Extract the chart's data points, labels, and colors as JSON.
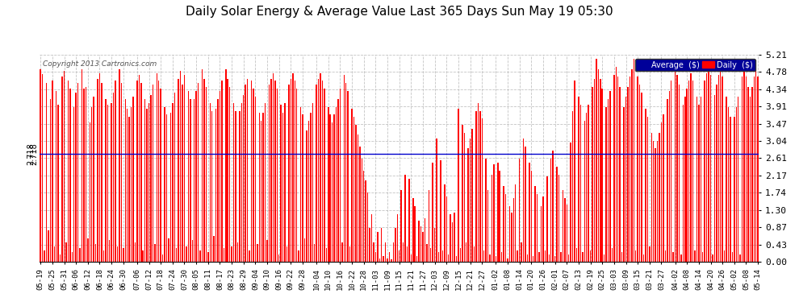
{
  "title": "Daily Solar Energy & Average Value Last 365 Days Sun May 19 05:30",
  "copyright": "Copyright 2013 Cartronics.com",
  "average_value": 2.718,
  "average_label": "2.718",
  "bar_color": "#ff0000",
  "average_line_color": "#0000cc",
  "background_color": "#ffffff",
  "grid_color": "#aaaaaa",
  "ylim": [
    0.0,
    5.21
  ],
  "yticks": [
    0.0,
    0.43,
    0.87,
    1.3,
    1.74,
    2.17,
    2.61,
    3.04,
    3.47,
    3.91,
    4.34,
    4.78,
    5.21
  ],
  "legend_avg_color": "#000099",
  "legend_daily_color": "#ff0000",
  "x_tick_labels": [
    "05-19",
    "05-25",
    "05-31",
    "06-06",
    "06-12",
    "06-18",
    "06-24",
    "06-30",
    "07-06",
    "07-12",
    "07-18",
    "07-24",
    "07-30",
    "08-05",
    "08-11",
    "08-17",
    "08-23",
    "08-29",
    "09-04",
    "09-10",
    "09-16",
    "09-22",
    "09-28",
    "10-04",
    "10-10",
    "10-16",
    "10-22",
    "10-28",
    "11-03",
    "11-09",
    "11-15",
    "11-21",
    "11-27",
    "12-03",
    "12-09",
    "12-15",
    "12-21",
    "12-27",
    "01-02",
    "01-08",
    "01-14",
    "01-20",
    "01-26",
    "02-01",
    "02-07",
    "02-13",
    "02-19",
    "02-25",
    "03-03",
    "03-09",
    "03-15",
    "03-21",
    "03-27",
    "04-02",
    "04-08",
    "04-14",
    "04-20",
    "04-26",
    "05-02",
    "05-08",
    "05-14"
  ],
  "bar_values": [
    4.85,
    4.72,
    0.3,
    4.5,
    0.8,
    4.1,
    4.55,
    0.4,
    4.3,
    3.95,
    0.2,
    4.65,
    4.8,
    0.5,
    4.55,
    4.35,
    0.25,
    3.9,
    4.25,
    4.5,
    0.35,
    4.85,
    4.35,
    4.4,
    0.6,
    3.5,
    3.9,
    4.15,
    0.45,
    4.6,
    4.75,
    4.5,
    0.3,
    4.1,
    3.95,
    0.55,
    4.0,
    4.25,
    4.55,
    0.4,
    4.85,
    4.5,
    0.35,
    4.1,
    3.85,
    3.65,
    3.9,
    4.15,
    0.5,
    4.55,
    4.7,
    4.5,
    0.3,
    4.1,
    3.85,
    4.0,
    4.2,
    4.45,
    0.45,
    4.75,
    4.55,
    4.35,
    0.2,
    3.9,
    3.7,
    0.6,
    3.75,
    4.0,
    4.25,
    0.35,
    4.6,
    4.8,
    4.45,
    4.7,
    0.4,
    4.3,
    4.1,
    0.55,
    4.1,
    4.3,
    4.5,
    0.3,
    4.85,
    4.6,
    4.4,
    0.25,
    4.0,
    3.8,
    0.65,
    3.85,
    4.1,
    4.3,
    4.55,
    0.35,
    4.85,
    4.6,
    4.4,
    0.4,
    4.0,
    3.8,
    0.5,
    3.8,
    4.0,
    4.2,
    4.45,
    4.6,
    0.3,
    4.55,
    4.35,
    4.15,
    0.45,
    3.75,
    3.55,
    3.75,
    4.0,
    0.55,
    4.45,
    4.6,
    4.75,
    4.55,
    4.35,
    0.2,
    3.95,
    3.75,
    4.0,
    0.4,
    4.45,
    4.6,
    4.75,
    4.55,
    4.35,
    0.3,
    3.9,
    3.7,
    0.6,
    3.3,
    3.55,
    3.75,
    4.0,
    0.45,
    4.45,
    4.6,
    4.75,
    4.55,
    4.35,
    0.35,
    3.9,
    3.7,
    3.5,
    3.7,
    3.9,
    4.1,
    4.35,
    0.5,
    4.7,
    4.5,
    4.3,
    0.4,
    3.85,
    3.65,
    3.45,
    3.2,
    2.9,
    2.6,
    2.3,
    2.05,
    1.75,
    0.85,
    1.2,
    0.5,
    0.25,
    0.75,
    0.1,
    0.85,
    0.15,
    0.5,
    0.1,
    0.25,
    0.08,
    0.5,
    0.85,
    1.2,
    0.3,
    1.8,
    0.5,
    2.2,
    0.4,
    2.1,
    0.2,
    1.6,
    1.4,
    0.15,
    1.05,
    0.9,
    0.75,
    1.1,
    0.45,
    1.8,
    0.35,
    2.5,
    0.85,
    3.1,
    0.25,
    2.55,
    0.3,
    1.95,
    1.65,
    0.2,
    1.2,
    1.0,
    1.25,
    0.15,
    3.85,
    0.35,
    3.45,
    3.25,
    0.5,
    2.85,
    3.1,
    3.35,
    0.4,
    3.8,
    4.0,
    3.8,
    3.6,
    0.3,
    2.6,
    1.8,
    0.2,
    2.2,
    2.45,
    0.15,
    2.5,
    2.3,
    0.25,
    1.9,
    1.7,
    0.1,
    1.4,
    1.25,
    1.6,
    1.95,
    0.3,
    2.6,
    0.5,
    3.1,
    2.9,
    0.2,
    2.5,
    2.3,
    0.15,
    1.9,
    1.7,
    0.25,
    1.4,
    1.65,
    0.3,
    2.15,
    0.2,
    2.6,
    2.8,
    0.15,
    2.4,
    2.2,
    0.25,
    1.8,
    1.6,
    1.45,
    0.2,
    3.0,
    3.8,
    4.55,
    0.35,
    4.15,
    3.95,
    0.25,
    3.55,
    3.75,
    3.95,
    0.3,
    4.4,
    4.6,
    5.1,
    4.85,
    4.6,
    4.35,
    0.2,
    3.9,
    4.1,
    4.3,
    0.35,
    4.7,
    4.9,
    4.65,
    4.4,
    0.25,
    3.9,
    4.15,
    4.4,
    4.65,
    4.85,
    5.1,
    0.3,
    4.65,
    4.45,
    4.25,
    0.2,
    3.85,
    3.65,
    0.4,
    3.25,
    3.05,
    2.85,
    3.05,
    3.25,
    3.5,
    3.7,
    0.3,
    4.1,
    4.3,
    4.55,
    0.25,
    4.95,
    4.7,
    4.45,
    0.2,
    3.95,
    4.15,
    4.35,
    4.55,
    4.75,
    4.55,
    0.3,
    4.15,
    3.95,
    4.15,
    0.25,
    4.55,
    4.75,
    4.95,
    4.7,
    0.2,
    4.2,
    4.45,
    4.7,
    4.9,
    4.65,
    0.3,
    4.15,
    3.9,
    3.65,
    0.25,
    3.65,
    3.9,
    4.15,
    0.2,
    4.65,
    4.9,
    4.65,
    4.4,
    4.15,
    4.4,
    4.65,
    4.9,
    4.65
  ]
}
